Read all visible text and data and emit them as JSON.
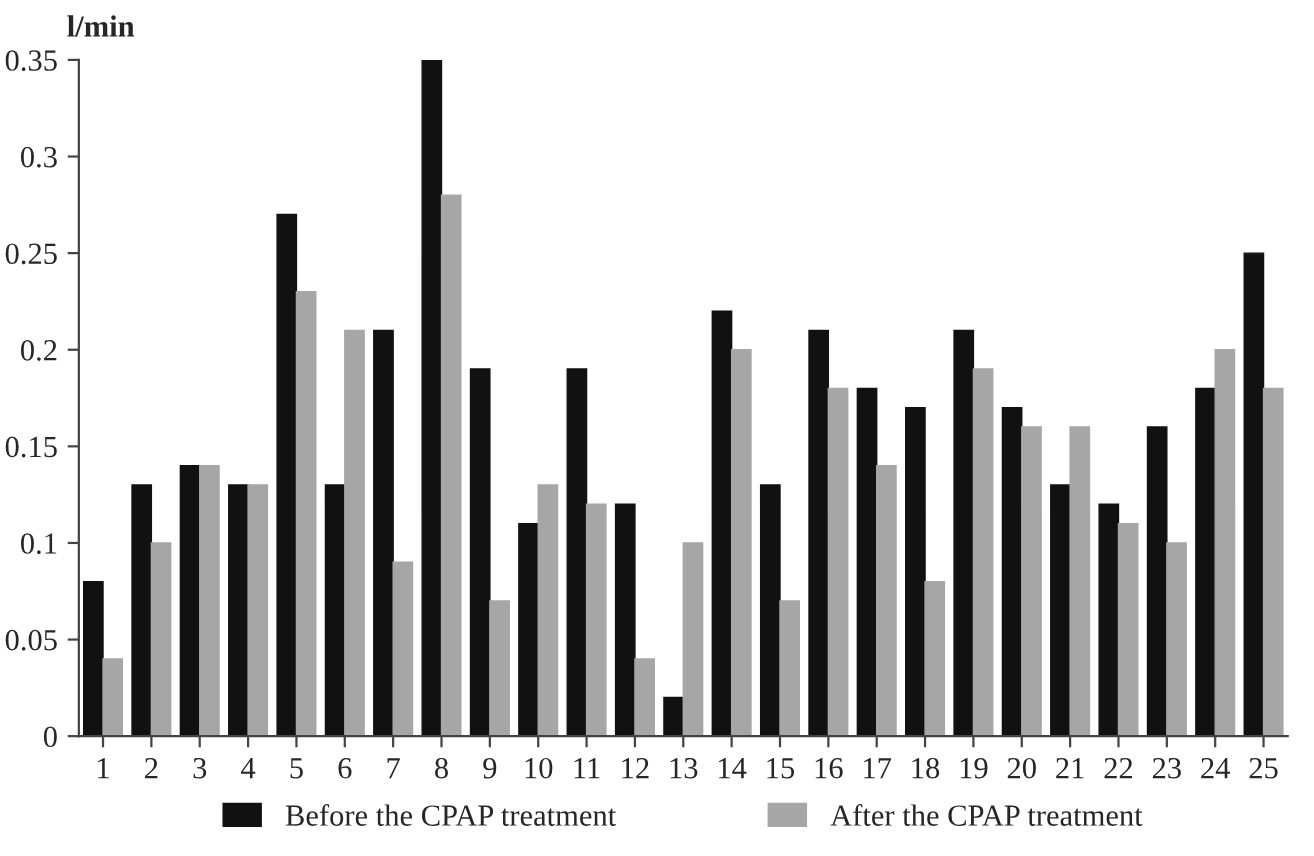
{
  "chart_data": {
    "type": "bar",
    "ylabel": "l/min",
    "categories": [
      "1",
      "2",
      "3",
      "4",
      "5",
      "6",
      "7",
      "8",
      "9",
      "10",
      "11",
      "12",
      "13",
      "14",
      "15",
      "16",
      "17",
      "18",
      "19",
      "20",
      "21",
      "22",
      "23",
      "24",
      "25"
    ],
    "series": [
      {
        "name": "Before the CPAP treatment",
        "color": "#111111",
        "values": [
          0.08,
          0.13,
          0.14,
          0.13,
          0.27,
          0.13,
          0.21,
          0.35,
          0.19,
          0.11,
          0.19,
          0.12,
          0.02,
          0.22,
          0.13,
          0.21,
          0.18,
          0.17,
          0.21,
          0.17,
          0.13,
          0.12,
          0.16,
          0.18,
          0.25
        ]
      },
      {
        "name": "After the CPAP treatment",
        "color": "#a6a6a6",
        "values": [
          0.04,
          0.1,
          0.14,
          0.13,
          0.23,
          0.21,
          0.09,
          0.28,
          0.07,
          0.13,
          0.12,
          0.04,
          0.1,
          0.2,
          0.07,
          0.18,
          0.14,
          0.08,
          0.19,
          0.16,
          0.16,
          0.11,
          0.1,
          0.2,
          0.18
        ]
      }
    ],
    "ylim": [
      0,
      0.35
    ],
    "yticks": [
      0,
      0.05,
      0.1,
      0.15,
      0.2,
      0.25,
      0.3,
      0.35
    ],
    "grid": false,
    "legend": "bottom"
  }
}
